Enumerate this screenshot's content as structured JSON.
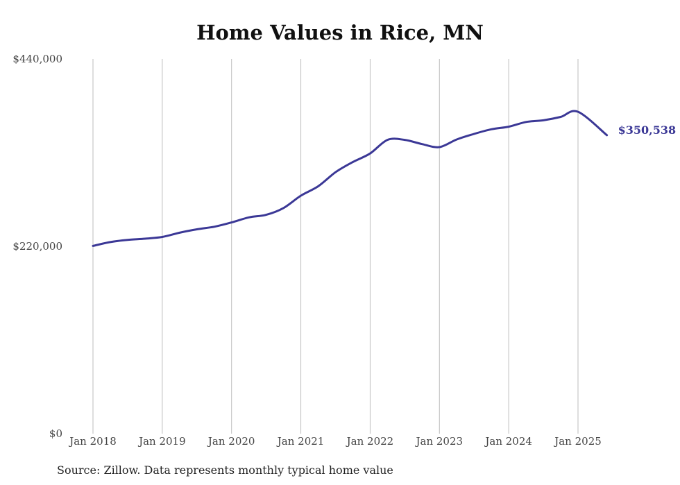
{
  "chart_data": {
    "type": "line",
    "title": "Home Values in Rice, MN",
    "source_note": "Source: Zillow. Data represents monthly typical home value",
    "ylim": [
      0,
      440000
    ],
    "y_ticks": [
      0,
      220000,
      440000
    ],
    "y_tick_labels": [
      "$0",
      "$220,000",
      "$440,000"
    ],
    "x_tick_dates": [
      "2018-01",
      "2019-01",
      "2020-01",
      "2021-01",
      "2022-01",
      "2023-01",
      "2024-01",
      "2025-01"
    ],
    "x_tick_labels": [
      "Jan 2018",
      "Jan 2019",
      "Jan 2020",
      "Jan 2021",
      "Jan 2022",
      "Jan 2023",
      "Jan 2024",
      "Jan 2025"
    ],
    "grid": "vertical",
    "line_color": "#3b3896",
    "end_label": "$350,538",
    "series": [
      {
        "x": [
          "2018-01",
          "2018-04",
          "2018-07",
          "2018-10",
          "2019-01",
          "2019-04",
          "2019-07",
          "2019-10",
          "2020-01",
          "2020-04",
          "2020-07",
          "2020-10",
          "2021-01",
          "2021-04",
          "2021-07",
          "2021-10",
          "2022-01",
          "2022-04",
          "2022-07",
          "2022-10",
          "2023-01",
          "2023-04",
          "2023-07",
          "2023-10",
          "2024-01",
          "2024-04",
          "2024-07",
          "2024-10",
          "2025-01",
          "2025-06"
        ],
        "values": [
          220500,
          225000,
          227500,
          229000,
          231000,
          236000,
          240000,
          243000,
          248000,
          254000,
          257000,
          265000,
          279500,
          290500,
          307000,
          319000,
          329000,
          345000,
          345000,
          340000,
          336500,
          345500,
          352000,
          357500,
          360500,
          366000,
          368000,
          372000,
          378000,
          350538
        ]
      }
    ]
  }
}
